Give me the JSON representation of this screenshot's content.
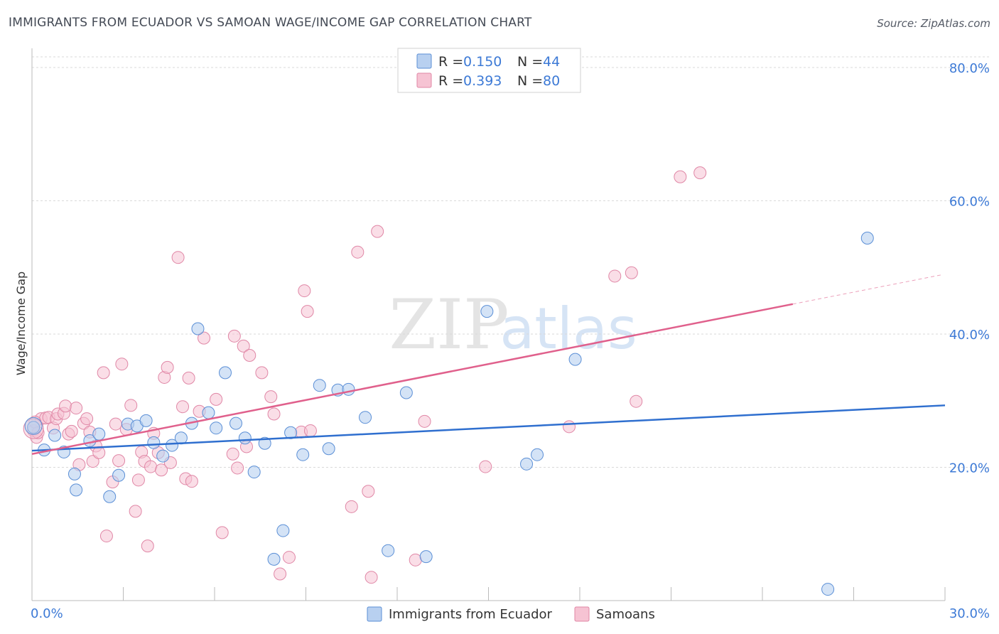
{
  "header": {
    "title": "IMMIGRANTS FROM ECUADOR VS SAMOAN WAGE/INCOME GAP CORRELATION CHART",
    "source": "Source: ZipAtlas.com"
  },
  "watermark": {
    "zip": "ZIP",
    "atlas": "atlas"
  },
  "legend": {
    "r_label": "R =",
    "n_label": "N =",
    "series": [
      {
        "r_value": "0.150",
        "n_value": "44"
      },
      {
        "r_value": "0.393",
        "n_value": "80"
      }
    ]
  },
  "colors": {
    "blue_fill": "#b8d0f0",
    "blue_stroke": "#5b8fd6",
    "blue_line": "#2f6fcf",
    "pink_fill": "#f6c3d3",
    "pink_stroke": "#e087a6",
    "pink_line": "#e0608c",
    "axis_text": "#3d7ad6",
    "grid": "#d9d9d9"
  },
  "chart_data": {
    "type": "scatter",
    "title": "IMMIGRANTS FROM ECUADOR VS SAMOAN WAGE/INCOME GAP CORRELATION CHART",
    "xlabel": "",
    "ylabel": "Wage/Income Gap",
    "xlim": [
      0,
      30
    ],
    "ylim": [
      0,
      80
    ],
    "y_ticks": [
      20,
      40,
      60,
      80
    ],
    "y_tick_labels": [
      "20.0%",
      "40.0%",
      "60.0%",
      "80.0%"
    ],
    "x_tick_labels": [
      "0.0%",
      "30.0%"
    ],
    "grid": true,
    "legend_position": "top-center",
    "series": [
      {
        "name": "Immigrants from Ecuador",
        "r": 0.15,
        "n": 44,
        "trend": {
          "x0": 0,
          "y0": 22.5,
          "x1": 30,
          "y1": 29.3
        },
        "points": [
          [
            0.05,
            26.0
          ],
          [
            0.4,
            22.6
          ],
          [
            0.75,
            24.8
          ],
          [
            1.05,
            22.3
          ],
          [
            1.4,
            19.0
          ],
          [
            1.45,
            16.6
          ],
          [
            1.9,
            24.0
          ],
          [
            2.2,
            25.0
          ],
          [
            2.55,
            15.6
          ],
          [
            2.85,
            18.8
          ],
          [
            3.15,
            26.5
          ],
          [
            3.45,
            26.2
          ],
          [
            3.75,
            27.0
          ],
          [
            4.0,
            23.7
          ],
          [
            4.3,
            21.7
          ],
          [
            4.6,
            23.3
          ],
          [
            4.9,
            24.4
          ],
          [
            5.25,
            26.6
          ],
          [
            5.45,
            40.8
          ],
          [
            5.8,
            28.2
          ],
          [
            6.05,
            25.9
          ],
          [
            6.35,
            34.2
          ],
          [
            6.7,
            26.6
          ],
          [
            7.0,
            24.4
          ],
          [
            7.3,
            19.3
          ],
          [
            7.65,
            23.6
          ],
          [
            7.95,
            6.2
          ],
          [
            8.25,
            10.5
          ],
          [
            8.5,
            25.2
          ],
          [
            8.9,
            21.9
          ],
          [
            9.45,
            32.3
          ],
          [
            9.75,
            22.8
          ],
          [
            10.05,
            31.6
          ],
          [
            10.4,
            31.7
          ],
          [
            10.95,
            27.5
          ],
          [
            11.7,
            7.5
          ],
          [
            12.3,
            31.2
          ],
          [
            12.95,
            6.6
          ],
          [
            14.95,
            43.4
          ],
          [
            16.25,
            20.5
          ],
          [
            16.6,
            21.9
          ],
          [
            17.85,
            36.2
          ],
          [
            27.45,
            54.4
          ],
          [
            26.15,
            1.7
          ]
        ]
      },
      {
        "name": "Samoans",
        "r": 0.393,
        "n": 80,
        "trend": {
          "x0": 0,
          "y0": 22.0,
          "x1": 25.0,
          "y1": 44.5
        },
        "trend_dashed": {
          "x0": 25.0,
          "y0": 44.5,
          "x1": 29.9,
          "y1": 48.9
        },
        "points": [
          [
            0.05,
            25.5
          ],
          [
            0.15,
            24.5
          ],
          [
            0.3,
            27.3
          ],
          [
            0.45,
            27.4
          ],
          [
            0.55,
            27.5
          ],
          [
            0.7,
            25.9
          ],
          [
            0.8,
            27.3
          ],
          [
            0.85,
            28.0
          ],
          [
            1.05,
            28.1
          ],
          [
            1.1,
            29.2
          ],
          [
            1.2,
            25.0
          ],
          [
            1.3,
            25.4
          ],
          [
            1.45,
            28.9
          ],
          [
            1.55,
            20.4
          ],
          [
            1.7,
            26.6
          ],
          [
            1.8,
            27.3
          ],
          [
            1.9,
            25.3
          ],
          [
            2.0,
            20.9
          ],
          [
            2.1,
            23.2
          ],
          [
            2.2,
            22.2
          ],
          [
            2.35,
            34.2
          ],
          [
            2.45,
            9.7
          ],
          [
            2.65,
            17.8
          ],
          [
            2.75,
            26.5
          ],
          [
            2.85,
            21.0
          ],
          [
            2.95,
            35.5
          ],
          [
            3.1,
            25.7
          ],
          [
            3.25,
            29.3
          ],
          [
            3.4,
            13.4
          ],
          [
            3.5,
            18.1
          ],
          [
            3.6,
            22.3
          ],
          [
            3.7,
            20.9
          ],
          [
            3.8,
            8.2
          ],
          [
            3.9,
            20.1
          ],
          [
            4.0,
            25.1
          ],
          [
            4.15,
            22.2
          ],
          [
            4.25,
            19.6
          ],
          [
            4.35,
            33.5
          ],
          [
            4.45,
            35.0
          ],
          [
            4.55,
            20.7
          ],
          [
            4.8,
            51.5
          ],
          [
            4.95,
            29.1
          ],
          [
            5.05,
            18.3
          ],
          [
            5.15,
            33.4
          ],
          [
            5.25,
            17.9
          ],
          [
            5.5,
            28.4
          ],
          [
            5.65,
            39.4
          ],
          [
            6.05,
            30.2
          ],
          [
            6.25,
            10.2
          ],
          [
            6.6,
            22.0
          ],
          [
            6.65,
            39.7
          ],
          [
            6.75,
            19.9
          ],
          [
            6.95,
            38.2
          ],
          [
            7.05,
            23.1
          ],
          [
            7.15,
            36.8
          ],
          [
            7.55,
            34.2
          ],
          [
            7.85,
            30.6
          ],
          [
            7.95,
            28.0
          ],
          [
            8.15,
            4.0
          ],
          [
            8.45,
            6.5
          ],
          [
            8.85,
            25.3
          ],
          [
            8.95,
            46.5
          ],
          [
            9.05,
            43.4
          ],
          [
            9.15,
            25.5
          ],
          [
            10.5,
            14.1
          ],
          [
            10.7,
            52.3
          ],
          [
            11.05,
            16.4
          ],
          [
            11.15,
            3.5
          ],
          [
            11.35,
            55.4
          ],
          [
            12.6,
            6.1
          ],
          [
            12.9,
            26.9
          ],
          [
            14.9,
            20.1
          ],
          [
            17.65,
            26.1
          ],
          [
            19.15,
            48.7
          ],
          [
            19.7,
            49.2
          ],
          [
            19.85,
            29.9
          ],
          [
            21.3,
            63.6
          ],
          [
            21.95,
            64.2
          ],
          [
            0.1,
            26.8
          ],
          [
            0.2,
            25.2
          ]
        ]
      }
    ]
  },
  "bottom_legend": {
    "items": [
      {
        "label": "Immigrants from Ecuador"
      },
      {
        "label": "Samoans"
      }
    ]
  }
}
